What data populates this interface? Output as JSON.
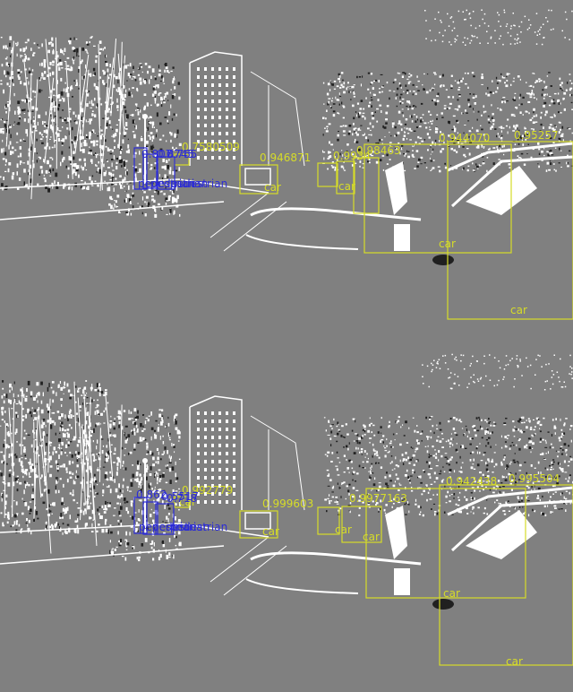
{
  "colors": {
    "background": "#808080",
    "edge": "#ffffff",
    "edge_dark": "#202020",
    "car_box": "#d6dc28",
    "pedestrian_box": "#2b2bd6"
  },
  "panels": [
    {
      "id": "top",
      "detections": [
        {
          "label": "car",
          "score": "0.95257",
          "label_text": "car"
        },
        {
          "label": "car",
          "score": "0.944070",
          "label_text": "car"
        },
        {
          "label": "car",
          "score": "0.946871",
          "label_text": "car"
        },
        {
          "label": "car",
          "score": "0.7580509",
          "label_text": ""
        },
        {
          "label": "car",
          "score": "0.9985",
          "label_text": "car"
        },
        {
          "label": "car",
          "score": "0.9934",
          "label_text": "car"
        },
        {
          "label": "car",
          "score": "0.98463",
          "label_text": ""
        },
        {
          "label": "pedestrian",
          "score": "0.807",
          "label_text": "pedestrian"
        },
        {
          "label": "pedestrian",
          "score": "0.8745",
          "label_text": "pedestrian"
        },
        {
          "label": "pedestrian",
          "score": "0.765",
          "label_text": "pedestrian"
        }
      ]
    },
    {
      "id": "bottom",
      "detections": [
        {
          "label": "car",
          "score": "0.995504",
          "label_text": "car"
        },
        {
          "label": "car",
          "score": "0.942438",
          "label_text": "car"
        },
        {
          "label": "car",
          "score": "0.999603",
          "label_text": "car"
        },
        {
          "label": "car",
          "score": "0.992779",
          "label_text": "car"
        },
        {
          "label": "car",
          "score": "0.9977163",
          "label_text": "car"
        },
        {
          "label": "car",
          "score": "0.9948",
          "label_text": "car"
        },
        {
          "label": "pedestrian",
          "score": "0.862",
          "label_text": "pedestrian"
        },
        {
          "label": "pedestrian",
          "score": "0.5517",
          "label_text": "pedestrian"
        },
        {
          "label": "pedestrian",
          "score": "0.718",
          "label_text": "pedestrian"
        }
      ]
    }
  ]
}
